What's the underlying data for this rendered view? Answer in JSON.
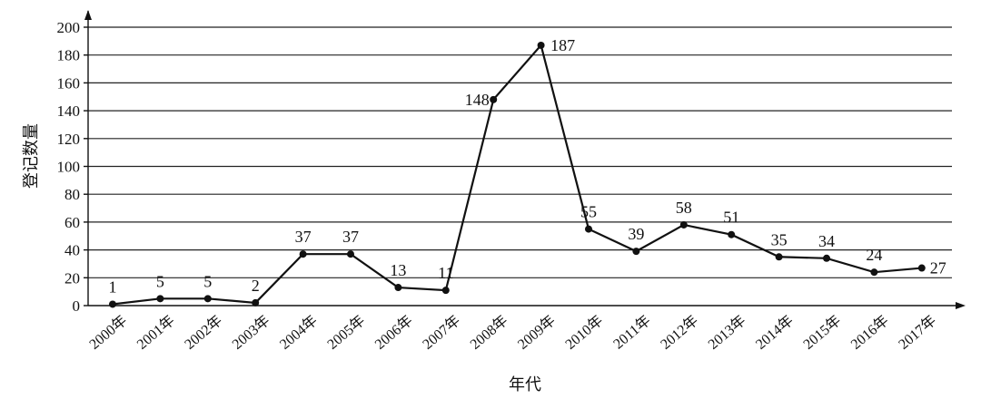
{
  "chart_data": {
    "type": "line",
    "categories": [
      "2000年",
      "2001年",
      "2002年",
      "2003年",
      "2004年",
      "2005年",
      "2006年",
      "2007年",
      "2008年",
      "2009年",
      "2010年",
      "2011年",
      "2012年",
      "2013年",
      "2014年",
      "2015年",
      "2016年",
      "2017年"
    ],
    "values": [
      1,
      5,
      5,
      2,
      37,
      37,
      13,
      11,
      148,
      187,
      55,
      39,
      58,
      51,
      35,
      34,
      24,
      27
    ],
    "data_labels": [
      "1",
      "5",
      "5",
      "2",
      "37",
      "37",
      "13",
      "11",
      "148",
      "187",
      "55",
      "39",
      "58",
      "51",
      "35",
      "34",
      "24",
      "27"
    ],
    "xlabel": "年代",
    "ylabel": "登记数量",
    "ylim": [
      0,
      200
    ],
    "yticks": [
      0,
      20,
      40,
      60,
      80,
      100,
      120,
      140,
      160,
      180,
      200
    ],
    "grid": true,
    "legend": "none"
  }
}
